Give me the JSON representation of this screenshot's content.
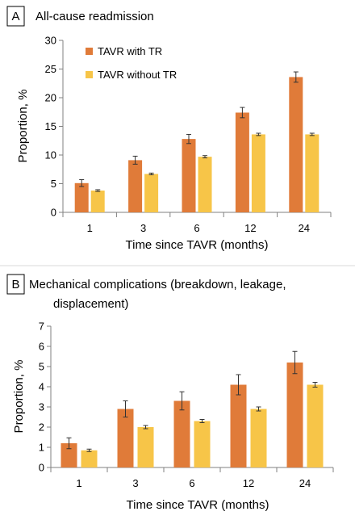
{
  "colors": {
    "tavr_with_tr": "#E07B39",
    "tavr_without_tr": "#F7C548",
    "error_bar": "#333333",
    "axis": "#808080",
    "separator": "#d9d9d9"
  },
  "chart_data": [
    {
      "type": "bar",
      "panel_label": "A",
      "title": "All-cause readmission",
      "xlabel": "Time since TAVR (months)",
      "ylabel": "Proportion, %",
      "ylim": [
        0,
        30
      ],
      "yticks": [
        0,
        5,
        10,
        15,
        20,
        25,
        30
      ],
      "categories": [
        "1",
        "3",
        "6",
        "12",
        "24"
      ],
      "legend": "top-left",
      "grid": false,
      "series": [
        {
          "name": "TAVR with TR",
          "color_key": "tavr_with_tr",
          "values": [
            5.1,
            9.1,
            12.8,
            17.4,
            23.6
          ],
          "errors": [
            0.6,
            0.7,
            0.8,
            0.9,
            0.9
          ]
        },
        {
          "name": "TAVR without TR",
          "color_key": "tavr_without_tr",
          "values": [
            3.8,
            6.7,
            9.7,
            13.6,
            13.6
          ],
          "errors": [
            0.15,
            0.15,
            0.2,
            0.2,
            0.2
          ]
        }
      ]
    },
    {
      "type": "bar",
      "panel_label": "B",
      "title_lines": [
        "Mechanical complications (breakdown, leakage,",
        "displacement)"
      ],
      "xlabel": "Time since TAVR (months)",
      "ylabel": "Proportion, %",
      "ylim": [
        0,
        7
      ],
      "yticks": [
        0,
        1,
        2,
        3,
        4,
        5,
        6,
        7
      ],
      "categories": [
        "1",
        "3",
        "6",
        "12",
        "24"
      ],
      "grid": false,
      "series": [
        {
          "name": "TAVR with TR",
          "color_key": "tavr_with_tr",
          "values": [
            1.2,
            2.9,
            3.3,
            4.1,
            5.2
          ],
          "errors": [
            0.27,
            0.4,
            0.45,
            0.5,
            0.55
          ]
        },
        {
          "name": "TAVR without TR",
          "color_key": "tavr_without_tr",
          "values": [
            0.85,
            2.0,
            2.3,
            2.9,
            4.1
          ],
          "errors": [
            0.06,
            0.08,
            0.08,
            0.1,
            0.12
          ]
        }
      ]
    }
  ]
}
